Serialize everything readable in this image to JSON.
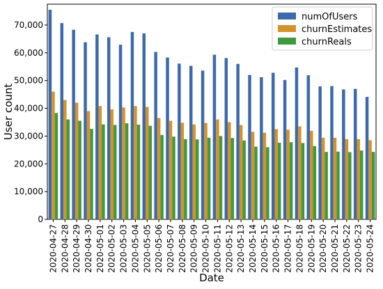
{
  "chart_data": {
    "type": "bar",
    "title": "",
    "xlabel": "Date",
    "ylabel": "User count",
    "ylim": [
      0,
      77500
    ],
    "yticks": [
      0,
      10000,
      20000,
      30000,
      40000,
      50000,
      60000,
      70000
    ],
    "ytick_labels": [
      "0",
      "10,000",
      "20,000",
      "30,000",
      "40,000",
      "50,000",
      "60,000",
      "70,000"
    ],
    "legend_position": "top-right",
    "categories": [
      "2020-04-27",
      "2020-04-28",
      "2020-04-29",
      "2020-04-30",
      "2020-05-01",
      "2020-05-02",
      "2020-05-03",
      "2020-05-04",
      "2020-05-05",
      "2020-05-06",
      "2020-05-07",
      "2020-05-08",
      "2020-05-09",
      "2020-05-10",
      "2020-05-11",
      "2020-05-12",
      "2020-05-13",
      "2020-05-14",
      "2020-05-15",
      "2020-05-16",
      "2020-05-17",
      "2020-05-18",
      "2020-05-19",
      "2020-05-20",
      "2020-05-21",
      "2020-05-22",
      "2020-05-23",
      "2020-05-24"
    ],
    "series": [
      {
        "name": "numOfUsers",
        "color": "#3d6aad",
        "values": [
          75500,
          70700,
          68300,
          63800,
          66600,
          65600,
          62900,
          67500,
          67000,
          60300,
          58300,
          56100,
          55300,
          53600,
          59300,
          58100,
          56000,
          52000,
          51200,
          52800,
          50200,
          54700,
          51900,
          47900,
          48000,
          46800,
          47000,
          44100
        ]
      },
      {
        "name": "churnEstimates",
        "color": "#d4932a",
        "values": [
          46000,
          43000,
          42000,
          39000,
          40800,
          39600,
          40300,
          40800,
          40500,
          36500,
          35500,
          34800,
          34200,
          34700,
          36000,
          35000,
          34000,
          31500,
          31200,
          32500,
          32300,
          33500,
          31900,
          29400,
          29400,
          28900,
          28900,
          28500
        ]
      },
      {
        "name": "churnReals",
        "color": "#3e9a3c",
        "values": [
          38300,
          36000,
          35500,
          32600,
          34200,
          34000,
          34600,
          34100,
          33700,
          30400,
          29800,
          28900,
          28800,
          29400,
          30000,
          29300,
          28400,
          26200,
          26000,
          27600,
          27800,
          27500,
          26400,
          24300,
          24400,
          24200,
          24800,
          24300
        ]
      }
    ]
  }
}
